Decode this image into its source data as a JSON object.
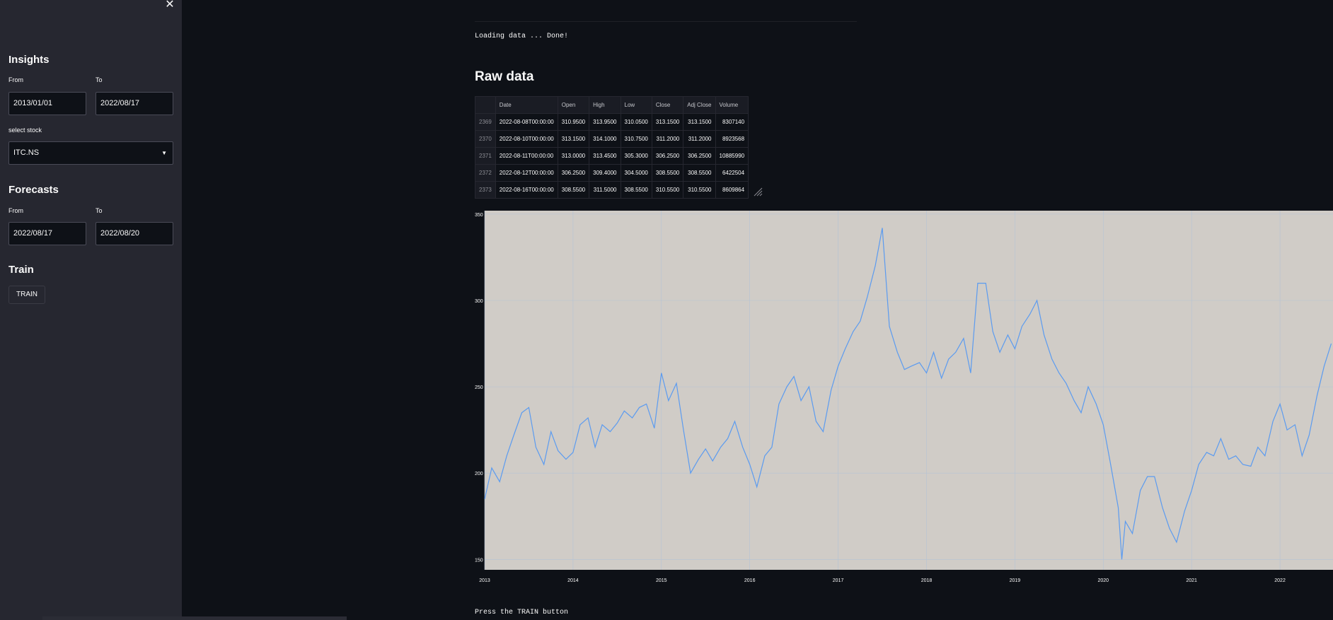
{
  "sidebar": {
    "close_icon": "✕",
    "insights": {
      "heading": "Insights",
      "from_label": "From",
      "to_label": "To",
      "from_value": "2013/01/01",
      "to_value": "2022/08/17",
      "select_label": "select stock",
      "select_value": "ITC.NS"
    },
    "forecasts": {
      "heading": "Forecasts",
      "from_label": "From",
      "to_label": "To",
      "from_value": "2022/08/17",
      "to_value": "2022/08/20"
    },
    "train": {
      "heading": "Train",
      "button_label": "TRAIN"
    }
  },
  "main": {
    "loading_text": "Loading data ... Done!",
    "raw_heading": "Raw data",
    "footer_text": "Press the TRAIN button"
  },
  "table": {
    "columns": [
      "",
      "Date",
      "Open",
      "High",
      "Low",
      "Close",
      "Adj Close",
      "Volume"
    ],
    "rows": [
      [
        "2369",
        "2022-08-08T00:00:00",
        "310.9500",
        "313.9500",
        "310.0500",
        "313.1500",
        "313.1500",
        "8307140"
      ],
      [
        "2370",
        "2022-08-10T00:00:00",
        "313.1500",
        "314.1000",
        "310.7500",
        "311.2000",
        "311.2000",
        "8923568"
      ],
      [
        "2371",
        "2022-08-11T00:00:00",
        "313.0000",
        "313.4500",
        "305.3000",
        "306.2500",
        "306.2500",
        "10885990"
      ],
      [
        "2372",
        "2022-08-12T00:00:00",
        "306.2500",
        "309.4000",
        "304.5000",
        "308.5500",
        "308.5500",
        "6422504"
      ],
      [
        "2373",
        "2022-08-16T00:00:00",
        "308.5500",
        "311.5000",
        "308.5500",
        "310.5500",
        "310.5500",
        "8609864"
      ]
    ]
  },
  "chart_data": {
    "type": "line",
    "title": "",
    "xlabel": "",
    "ylabel": "",
    "ylim": [
      144,
      352
    ],
    "xlim": [
      2013.0,
      2022.6
    ],
    "grid": true,
    "plot_bg": "#d0ccc7",
    "y_ticks": [
      150,
      200,
      250,
      300,
      350
    ],
    "x_ticks": [
      "2013",
      "2014",
      "2015",
      "2016",
      "2017",
      "2018",
      "2019",
      "2020",
      "2021",
      "2022"
    ],
    "series": [
      {
        "color": "#5b9bf0",
        "x": [
          2013.0,
          2013.08,
          2013.17,
          2013.25,
          2013.33,
          2013.42,
          2013.5,
          2013.58,
          2013.67,
          2013.75,
          2013.83,
          2013.92,
          2014.0,
          2014.08,
          2014.17,
          2014.25,
          2014.33,
          2014.42,
          2014.5,
          2014.58,
          2014.67,
          2014.75,
          2014.83,
          2014.92,
          2015.0,
          2015.08,
          2015.17,
          2015.25,
          2015.33,
          2015.42,
          2015.5,
          2015.58,
          2015.67,
          2015.75,
          2015.83,
          2015.92,
          2016.0,
          2016.08,
          2016.17,
          2016.25,
          2016.33,
          2016.42,
          2016.5,
          2016.58,
          2016.67,
          2016.75,
          2016.83,
          2016.92,
          2017.0,
          2017.08,
          2017.17,
          2017.25,
          2017.33,
          2017.42,
          2017.5,
          2017.58,
          2017.67,
          2017.75,
          2017.83,
          2017.92,
          2018.0,
          2018.08,
          2018.17,
          2018.25,
          2018.33,
          2018.42,
          2018.5,
          2018.58,
          2018.67,
          2018.75,
          2018.83,
          2018.92,
          2019.0,
          2019.08,
          2019.17,
          2019.25,
          2019.33,
          2019.42,
          2019.5,
          2019.58,
          2019.67,
          2019.75,
          2019.83,
          2019.92,
          2020.0,
          2020.08,
          2020.17,
          2020.21,
          2020.25,
          2020.33,
          2020.42,
          2020.5,
          2020.58,
          2020.67,
          2020.75,
          2020.83,
          2020.92,
          2021.0,
          2021.08,
          2021.17,
          2021.25,
          2021.33,
          2021.42,
          2021.5,
          2021.58,
          2021.67,
          2021.75,
          2021.83,
          2021.92,
          2022.0,
          2022.08,
          2022.17,
          2022.25,
          2022.33,
          2022.42,
          2022.5,
          2022.58
        ],
        "y": [
          185,
          203,
          195,
          210,
          222,
          235,
          238,
          215,
          205,
          224,
          213,
          208,
          212,
          228,
          232,
          215,
          228,
          224,
          229,
          236,
          232,
          238,
          240,
          226,
          258,
          242,
          252,
          225,
          200,
          208,
          214,
          207,
          215,
          220,
          230,
          215,
          205,
          192,
          210,
          215,
          240,
          250,
          256,
          242,
          250,
          230,
          224,
          248,
          262,
          272,
          282,
          288,
          302,
          320,
          342,
          285,
          270,
          260,
          262,
          264,
          258,
          270,
          255,
          266,
          270,
          278,
          258,
          310,
          310,
          282,
          270,
          280,
          272,
          285,
          292,
          300,
          280,
          266,
          258,
          252,
          242,
          235,
          250,
          240,
          228,
          206,
          180,
          150,
          172,
          165,
          190,
          198,
          198,
          180,
          168,
          160,
          178,
          190,
          205,
          212,
          210,
          220,
          208,
          210,
          205,
          204,
          215,
          210,
          230,
          240,
          225,
          228,
          210,
          222,
          245,
          262,
          275
        ]
      }
    ]
  }
}
